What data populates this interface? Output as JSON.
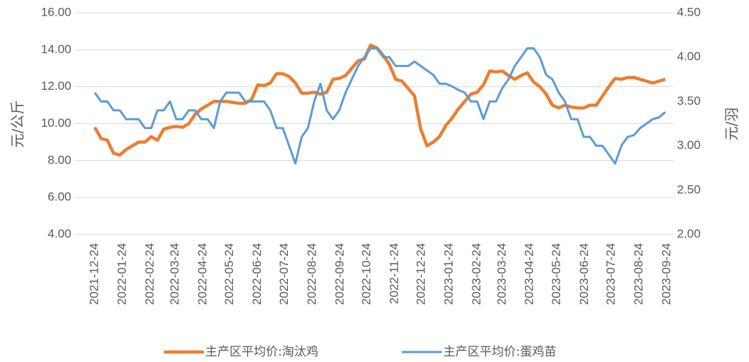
{
  "chart_data": {
    "type": "line",
    "y_label": "元/公斤",
    "y2_label": "元/羽",
    "x": [
      "2021-12-24",
      "2021-12-31",
      "2022-01-07",
      "2022-01-14",
      "2022-01-21",
      "2022-01-28",
      "2022-02-04",
      "2022-02-11",
      "2022-02-18",
      "2022-02-25",
      "2022-03-04",
      "2022-03-11",
      "2022-03-18",
      "2022-03-25",
      "2022-04-01",
      "2022-04-08",
      "2022-04-15",
      "2022-04-22",
      "2022-04-29",
      "2022-05-06",
      "2022-05-13",
      "2022-05-20",
      "2022-05-27",
      "2022-06-03",
      "2022-06-10",
      "2022-06-17",
      "2022-06-24",
      "2022-07-01",
      "2022-07-08",
      "2022-07-15",
      "2022-07-22",
      "2022-07-29",
      "2022-08-05",
      "2022-08-12",
      "2022-08-19",
      "2022-08-26",
      "2022-09-02",
      "2022-09-09",
      "2022-09-16",
      "2022-09-23",
      "2022-09-30",
      "2022-10-07",
      "2022-10-14",
      "2022-10-21",
      "2022-10-28",
      "2022-11-04",
      "2022-11-11",
      "2022-11-18",
      "2022-11-25",
      "2022-12-02",
      "2022-12-09",
      "2022-12-16",
      "2022-12-23",
      "2022-12-30",
      "2023-01-06",
      "2023-01-13",
      "2023-01-20",
      "2023-01-27",
      "2023-02-03",
      "2023-02-10",
      "2023-02-17",
      "2023-02-24",
      "2023-03-03",
      "2023-03-10",
      "2023-03-17",
      "2023-03-24",
      "2023-03-31",
      "2023-04-07",
      "2023-04-14",
      "2023-04-21",
      "2023-04-28",
      "2023-05-05",
      "2023-05-12",
      "2023-05-19",
      "2023-05-26",
      "2023-06-02",
      "2023-06-09",
      "2023-06-16",
      "2023-06-23",
      "2023-06-30",
      "2023-07-07",
      "2023-07-14",
      "2023-07-21",
      "2023-07-28",
      "2023-08-04",
      "2023-08-11",
      "2023-08-18",
      "2023-08-25",
      "2023-09-01",
      "2023-09-08",
      "2023-09-15",
      "2023-09-22"
    ],
    "series": [
      {
        "name": "主产区平均价:淘汰鸡",
        "color": "#ED7D31",
        "axis": "y",
        "values": [
          9.8,
          9.2,
          9.1,
          8.4,
          8.3,
          8.6,
          8.8,
          9.0,
          9.0,
          9.3,
          9.1,
          9.7,
          9.8,
          9.85,
          9.8,
          10.0,
          10.5,
          10.8,
          11.0,
          11.2,
          11.2,
          11.2,
          11.15,
          11.1,
          11.1,
          11.3,
          12.1,
          12.05,
          12.2,
          12.7,
          12.7,
          12.55,
          12.2,
          11.65,
          11.65,
          11.7,
          11.6,
          11.7,
          12.4,
          12.45,
          12.6,
          13.0,
          13.4,
          13.5,
          14.25,
          14.1,
          13.7,
          13.2,
          12.4,
          12.3,
          11.9,
          11.5,
          9.7,
          8.8,
          9.0,
          9.3,
          9.9,
          10.3,
          10.8,
          11.2,
          11.6,
          11.7,
          12.1,
          12.85,
          12.8,
          12.85,
          12.6,
          12.4,
          12.6,
          12.75,
          12.25,
          12.0,
          11.6,
          11.0,
          10.85,
          11.0,
          10.9,
          10.85,
          10.85,
          11.0,
          11.0,
          11.5,
          12.0,
          12.45,
          12.4,
          12.5,
          12.5,
          12.4,
          12.3,
          12.2,
          12.3,
          12.4
        ]
      },
      {
        "name": "主产区平均价:蛋鸡苗",
        "color": "#5B9BD5",
        "axis": "y2",
        "values": [
          3.6,
          3.5,
          3.5,
          3.4,
          3.4,
          3.3,
          3.3,
          3.3,
          3.2,
          3.2,
          3.4,
          3.4,
          3.5,
          3.3,
          3.3,
          3.4,
          3.4,
          3.3,
          3.3,
          3.2,
          3.5,
          3.6,
          3.6,
          3.6,
          3.5,
          3.5,
          3.5,
          3.5,
          3.4,
          3.2,
          3.2,
          3.0,
          2.8,
          3.1,
          3.2,
          3.5,
          3.7,
          3.4,
          3.3,
          3.4,
          3.6,
          3.75,
          3.9,
          4.0,
          4.1,
          4.1,
          4.0,
          4.0,
          3.9,
          3.9,
          3.9,
          3.95,
          3.9,
          3.85,
          3.8,
          3.7,
          3.7,
          3.67,
          3.63,
          3.6,
          3.5,
          3.5,
          3.3,
          3.5,
          3.5,
          3.65,
          3.75,
          3.9,
          4.0,
          4.1,
          4.1,
          4.0,
          3.8,
          3.75,
          3.6,
          3.5,
          3.3,
          3.3,
          3.1,
          3.1,
          3.0,
          3.0,
          2.9,
          2.8,
          3.0,
          3.1,
          3.12,
          3.2,
          3.25,
          3.3,
          3.32,
          3.38
        ]
      }
    ],
    "xticks": [
      "2021-12-24",
      "2022-01-24",
      "2022-02-24",
      "2022-03-24",
      "2022-04-24",
      "2022-05-24",
      "2022-06-24",
      "2022-07-24",
      "2022-08-24",
      "2022-09-24",
      "2022-10-24",
      "2022-11-24",
      "2022-12-24",
      "2023-01-24",
      "2023-02-24",
      "2023-03-24",
      "2023-04-24",
      "2023-05-24",
      "2023-06-24",
      "2023-07-24",
      "2023-08-24",
      "2023-09-24"
    ],
    "ylim": [
      4,
      16
    ],
    "yticks": [
      {
        "value": 4,
        "label": "4.00"
      },
      {
        "value": 6,
        "label": "6.00"
      },
      {
        "value": 8,
        "label": "8.00"
      },
      {
        "value": 10,
        "label": "10.00"
      },
      {
        "value": 12,
        "label": "12.00"
      },
      {
        "value": 14,
        "label": "14.00"
      },
      {
        "value": 16,
        "label": "16.00"
      }
    ],
    "y2lim": [
      2,
      4.5
    ],
    "y2ticks": [
      {
        "value": 2,
        "label": "2.00"
      },
      {
        "value": 2.5,
        "label": "2.50"
      },
      {
        "value": 3,
        "label": "3.00"
      },
      {
        "value": 3.5,
        "label": "3.50"
      },
      {
        "value": 4,
        "label": "4.00"
      },
      {
        "value": 4.5,
        "label": "4.50"
      }
    ],
    "grid": true,
    "legend": "bottom"
  }
}
